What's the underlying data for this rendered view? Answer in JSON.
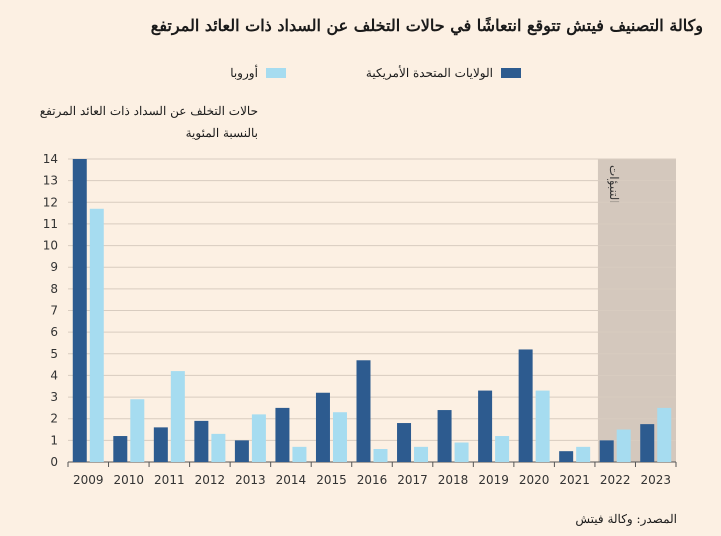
{
  "title": "وكالة التصنيف فيتش تتوقع انتعاشًا في حالات التخلف عن السداد ذات العائد المرتفع",
  "legend": {
    "us_label": "الولايات المتحدة الأمريكية",
    "europe_label": "أوروبا"
  },
  "ylabel_line1": "حالات التخلف عن السداد ذات العائد المرتفع",
  "ylabel_line2": "بالنسبة المئوية",
  "source": "المصدر: وكالة فيتش",
  "colors": {
    "us": "#2d5b8f",
    "europe": "#a6dcf0",
    "forecast_band": "#d4c8bd",
    "grid": "#d8ccc0",
    "background": "#fcf0e3"
  },
  "chart_data": {
    "type": "bar",
    "categories": [
      "2009",
      "2010",
      "2011",
      "2012",
      "2013",
      "2014",
      "2015",
      "2016",
      "2017",
      "2018",
      "2019",
      "2020",
      "2021",
      "2022",
      "2023"
    ],
    "series": [
      {
        "name": "الولايات المتحدة الأمريكية",
        "values": [
          14,
          1.2,
          1.6,
          1.9,
          1.0,
          2.5,
          3.2,
          4.7,
          1.8,
          2.4,
          3.3,
          5.2,
          0.5,
          1.0,
          1.75
        ]
      },
      {
        "name": "أوروبا",
        "values": [
          11.7,
          2.9,
          4.2,
          1.3,
          2.2,
          0.7,
          2.3,
          0.6,
          0.7,
          0.9,
          1.2,
          3.3,
          0.7,
          1.5,
          2.5
        ]
      }
    ],
    "ylim": [
      0,
      14
    ],
    "yticks": [
      0,
      1,
      2,
      3,
      4,
      5,
      6,
      7,
      8,
      9,
      10,
      11,
      12,
      13,
      14
    ],
    "forecast_label": "التنبؤات",
    "forecast_categories": [
      "2022",
      "2023"
    ],
    "grid": true,
    "legend_position": "top"
  }
}
